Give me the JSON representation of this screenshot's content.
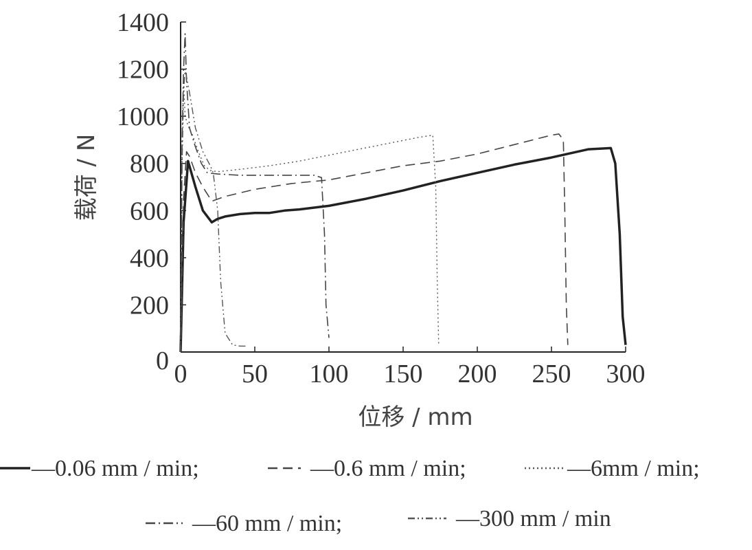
{
  "chart_data": {
    "type": "line",
    "xlabel": "位移 / mm",
    "ylabel": "载荷 / N",
    "xlim": [
      0,
      300
    ],
    "ylim": [
      0,
      1400
    ],
    "x_ticks": [
      0,
      50,
      100,
      150,
      200,
      250,
      300
    ],
    "y_ticks": [
      0,
      200,
      400,
      600,
      800,
      1000,
      1200,
      1400
    ],
    "grid": false,
    "legend_position": "bottom",
    "series": [
      {
        "name": "—0.06 mm / min;",
        "dash": "solid",
        "points": [
          [
            0,
            0
          ],
          [
            2,
            550
          ],
          [
            5,
            810
          ],
          [
            10,
            700
          ],
          [
            15,
            600
          ],
          [
            21,
            550
          ],
          [
            25,
            565
          ],
          [
            30,
            575
          ],
          [
            40,
            585
          ],
          [
            50,
            590
          ],
          [
            60,
            590
          ],
          [
            70,
            600
          ],
          [
            80,
            605
          ],
          [
            100,
            620
          ],
          [
            125,
            650
          ],
          [
            150,
            685
          ],
          [
            175,
            725
          ],
          [
            200,
            760
          ],
          [
            225,
            795
          ],
          [
            250,
            825
          ],
          [
            275,
            860
          ],
          [
            290,
            865
          ],
          [
            293,
            800
          ],
          [
            296,
            500
          ],
          [
            298,
            150
          ],
          [
            300,
            30
          ]
        ]
      },
      {
        "name": "—0.6 mm / min;",
        "dash": "dashed",
        "points": [
          [
            0,
            0
          ],
          [
            2,
            650
          ],
          [
            4,
            850
          ],
          [
            6,
            830
          ],
          [
            10,
            760
          ],
          [
            15,
            700
          ],
          [
            21,
            640
          ],
          [
            30,
            660
          ],
          [
            50,
            690
          ],
          [
            75,
            715
          ],
          [
            100,
            730
          ],
          [
            125,
            760
          ],
          [
            150,
            790
          ],
          [
            175,
            810
          ],
          [
            200,
            840
          ],
          [
            225,
            880
          ],
          [
            250,
            920
          ],
          [
            255,
            925
          ],
          [
            258,
            900
          ],
          [
            259,
            600
          ],
          [
            260,
            200
          ],
          [
            261,
            30
          ]
        ]
      },
      {
        "name": "—6mm / min;",
        "dash": "dotted",
        "points": [
          [
            0,
            0
          ],
          [
            1,
            900
          ],
          [
            2,
            1150
          ],
          [
            3,
            1000
          ],
          [
            5,
            960
          ],
          [
            8,
            920
          ],
          [
            12,
            850
          ],
          [
            16,
            790
          ],
          [
            20,
            770
          ],
          [
            25,
            765
          ],
          [
            40,
            775
          ],
          [
            60,
            790
          ],
          [
            80,
            810
          ],
          [
            100,
            835
          ],
          [
            120,
            860
          ],
          [
            140,
            885
          ],
          [
            160,
            910
          ],
          [
            170,
            920
          ],
          [
            172,
            700
          ],
          [
            173,
            300
          ],
          [
            174,
            30
          ]
        ]
      },
      {
        "name": "—60 mm / min;",
        "dash": "dashdot",
        "points": [
          [
            0,
            0
          ],
          [
            1,
            900
          ],
          [
            2,
            1200
          ],
          [
            3,
            1350
          ],
          [
            4,
            1150
          ],
          [
            6,
            950
          ],
          [
            10,
            870
          ],
          [
            14,
            800
          ],
          [
            18,
            760
          ],
          [
            25,
            755
          ],
          [
            40,
            750
          ],
          [
            60,
            750
          ],
          [
            80,
            750
          ],
          [
            90,
            750
          ],
          [
            95,
            740
          ],
          [
            97,
            500
          ],
          [
            98,
            200
          ],
          [
            100,
            60
          ]
        ]
      },
      {
        "name": "—300 mm / min",
        "dash": "dashdotdot",
        "points": [
          [
            0,
            0
          ],
          [
            1,
            800
          ],
          [
            2,
            1100
          ],
          [
            3,
            1200
          ],
          [
            6,
            1100
          ],
          [
            10,
            950
          ],
          [
            15,
            850
          ],
          [
            20,
            790
          ],
          [
            22,
            760
          ],
          [
            25,
            600
          ],
          [
            27,
            300
          ],
          [
            30,
            80
          ],
          [
            35,
            30
          ],
          [
            40,
            25
          ],
          [
            45,
            25
          ]
        ]
      }
    ]
  }
}
